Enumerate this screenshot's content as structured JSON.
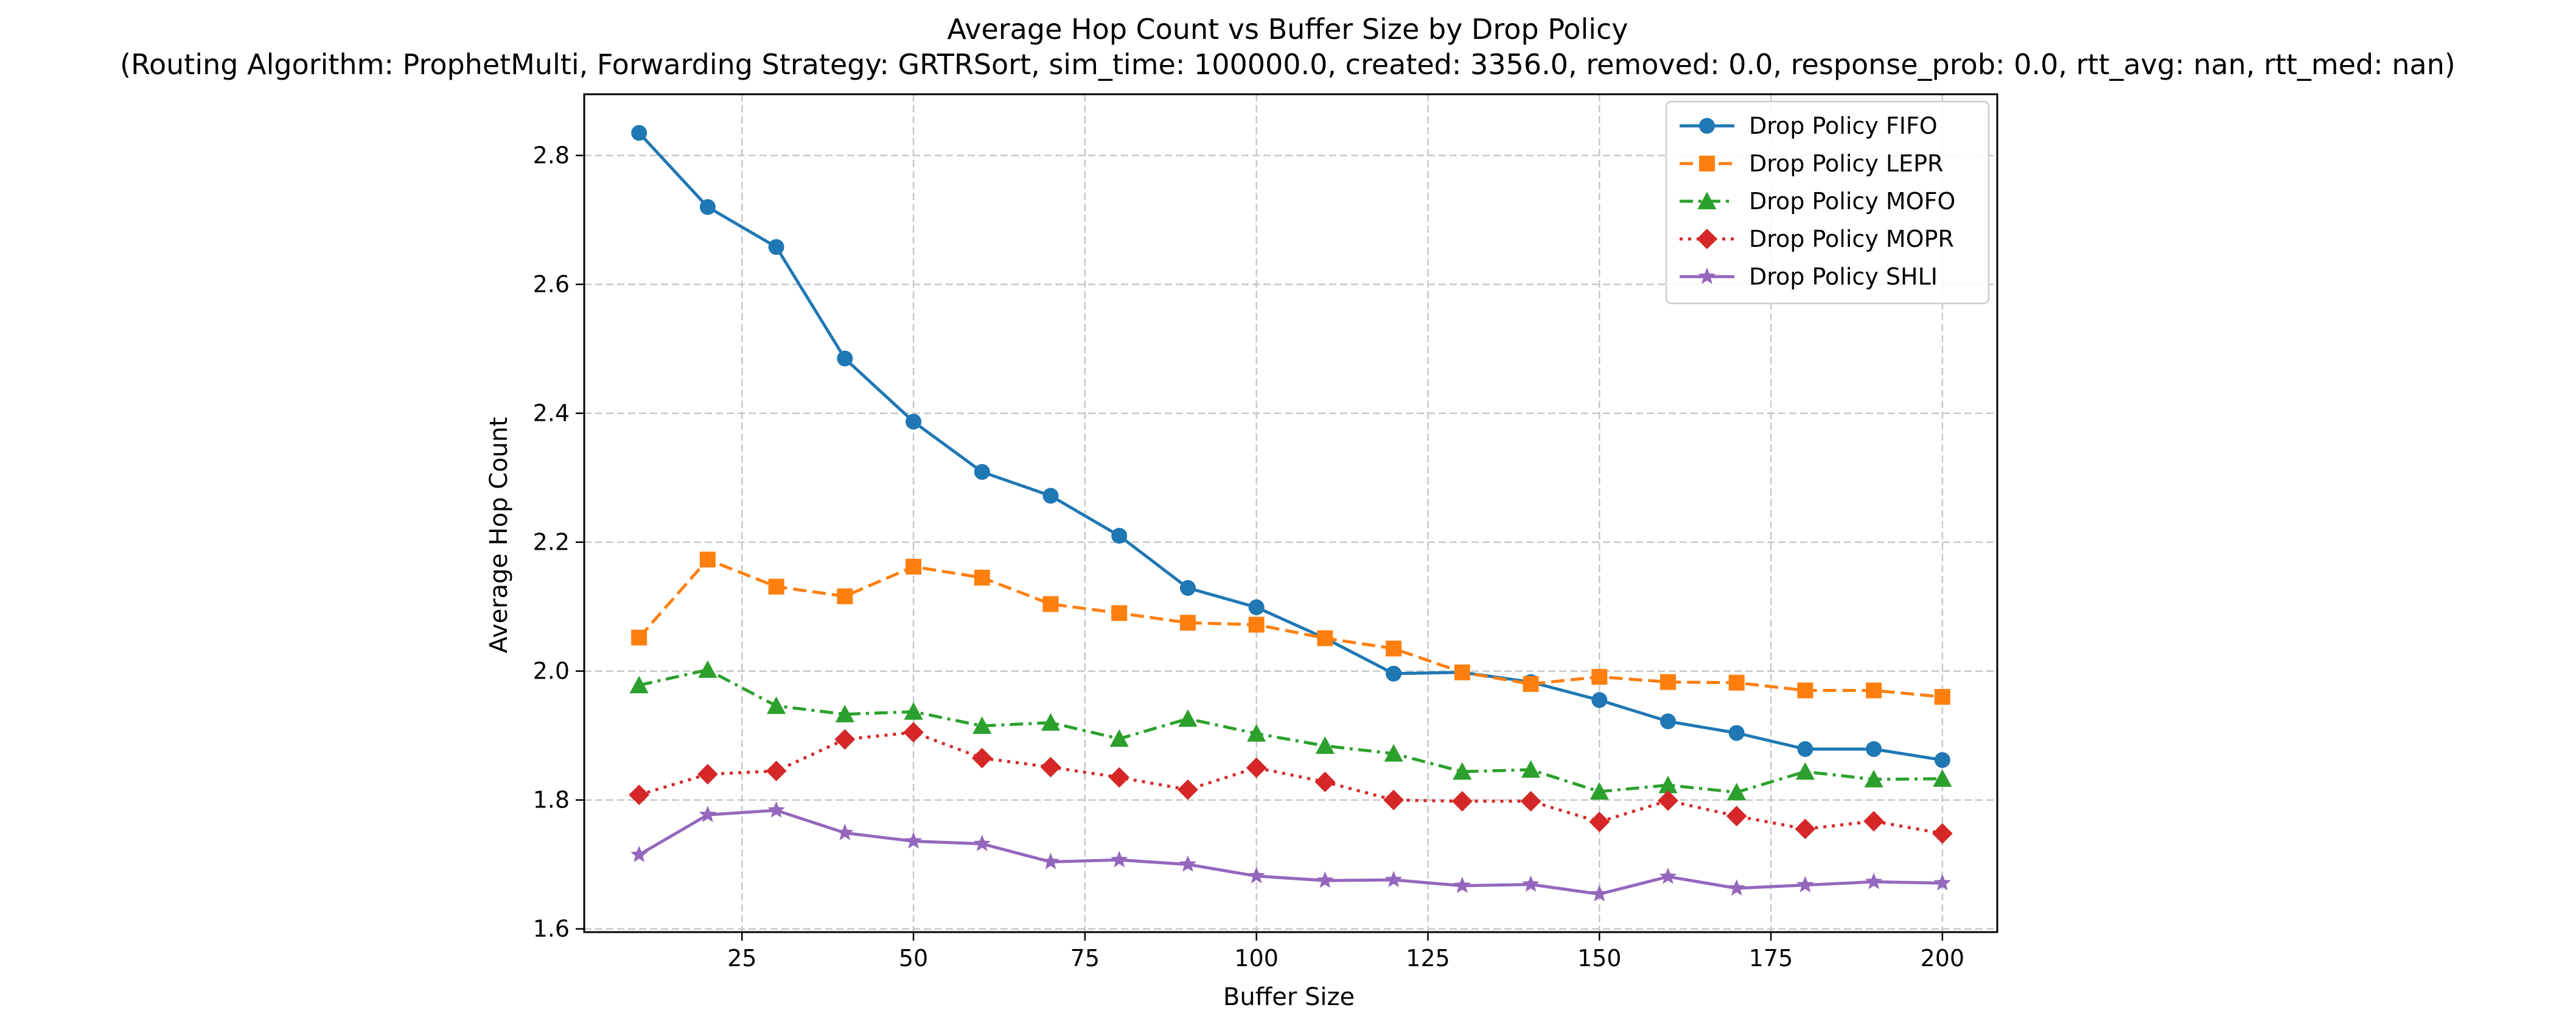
{
  "chart_data": {
    "type": "line",
    "title": "Average Hop Count vs Buffer Size by Drop Policy",
    "subtitle": "(Routing Algorithm: ProphetMulti, Forwarding Strategy: GRTRSort, sim_time: 100000.0, created: 3356.0, removed: 0.0, response_prob: 0.0, rtt_avg: nan, rtt_med: nan)",
    "xlabel": "Buffer Size",
    "ylabel": "Average Hop Count",
    "xlim": [
      2,
      208
    ],
    "ylim": [
      1.595,
      2.895
    ],
    "x_ticks": [
      25,
      50,
      75,
      100,
      125,
      150,
      175,
      200
    ],
    "y_ticks": [
      1.6,
      1.8,
      2.0,
      2.2,
      2.4,
      2.6,
      2.8
    ],
    "x_tick_labels": [
      "25",
      "50",
      "75",
      "100",
      "125",
      "150",
      "175",
      "200"
    ],
    "y_tick_labels": [
      "1.6",
      "1.8",
      "2.0",
      "2.2",
      "2.4",
      "2.6",
      "2.8"
    ],
    "grid": true,
    "legend_position": "top-right",
    "x": [
      10,
      20,
      30,
      40,
      50,
      60,
      70,
      80,
      90,
      100,
      110,
      120,
      130,
      140,
      150,
      160,
      170,
      180,
      190,
      200
    ],
    "series": [
      {
        "name": "Drop Policy FIFO",
        "color": "#1f77b4",
        "line_style": "solid",
        "marker": "circle",
        "values": [
          2.835,
          2.72,
          2.658,
          2.485,
          2.387,
          2.309,
          2.272,
          2.21,
          2.129,
          2.099,
          2.051,
          1.996,
          1.998,
          1.983,
          1.955,
          1.922,
          1.904,
          1.879,
          1.879,
          1.862
        ]
      },
      {
        "name": "Drop Policy LEPR",
        "color": "#ff7f0e",
        "line_style": "dashed",
        "marker": "square",
        "values": [
          2.052,
          2.173,
          2.131,
          2.116,
          2.162,
          2.145,
          2.104,
          2.09,
          2.075,
          2.072,
          2.051,
          2.035,
          1.998,
          1.98,
          1.991,
          1.983,
          1.982,
          1.97,
          1.97,
          1.96
        ]
      },
      {
        "name": "Drop Policy MOFO",
        "color": "#2ca02c",
        "line_style": "dashdot",
        "marker": "triangle",
        "values": [
          1.978,
          2.002,
          1.946,
          1.933,
          1.937,
          1.915,
          1.92,
          1.895,
          1.926,
          1.903,
          1.884,
          1.872,
          1.844,
          1.847,
          1.813,
          1.823,
          1.812,
          1.844,
          1.832,
          1.833
        ]
      },
      {
        "name": "Drop Policy MOPR",
        "color": "#d62728",
        "line_style": "dotted",
        "marker": "diamond",
        "values": [
          1.808,
          1.84,
          1.845,
          1.894,
          1.905,
          1.865,
          1.851,
          1.835,
          1.816,
          1.85,
          1.828,
          1.8,
          1.798,
          1.798,
          1.766,
          1.799,
          1.775,
          1.755,
          1.767,
          1.748
        ]
      },
      {
        "name": "Drop Policy SHLI",
        "color": "#9467bd",
        "line_style": "solid",
        "marker": "star",
        "values": [
          1.715,
          1.777,
          1.784,
          1.749,
          1.736,
          1.732,
          1.704,
          1.707,
          1.7,
          1.682,
          1.675,
          1.676,
          1.667,
          1.669,
          1.654,
          1.681,
          1.663,
          1.668,
          1.673,
          1.671
        ]
      }
    ]
  }
}
